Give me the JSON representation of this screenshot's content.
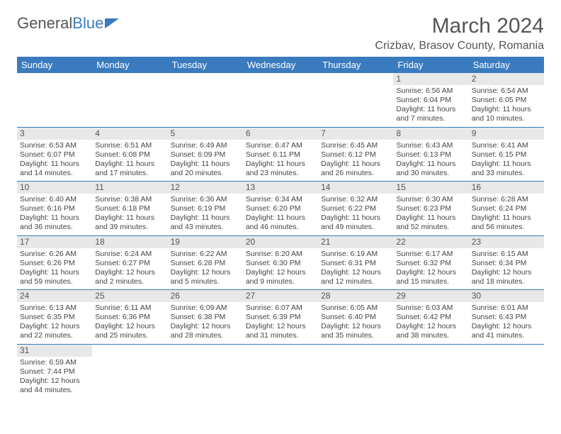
{
  "logo": {
    "text1": "General",
    "text2": "Blue"
  },
  "title": "March 2024",
  "location": "Crizbav, Brasov County, Romania",
  "colors": {
    "header_bg": "#3a7bbf",
    "header_fg": "#ffffff",
    "daynum_bg": "#e8e8e8",
    "text": "#444444",
    "rule": "#3a7bbf"
  },
  "weekdays": [
    "Sunday",
    "Monday",
    "Tuesday",
    "Wednesday",
    "Thursday",
    "Friday",
    "Saturday"
  ],
  "weeks": [
    [
      null,
      null,
      null,
      null,
      null,
      {
        "n": "1",
        "sr": "Sunrise: 6:56 AM",
        "ss": "Sunset: 6:04 PM",
        "dl": "Daylight: 11 hours and 7 minutes."
      },
      {
        "n": "2",
        "sr": "Sunrise: 6:54 AM",
        "ss": "Sunset: 6:05 PM",
        "dl": "Daylight: 11 hours and 10 minutes."
      }
    ],
    [
      {
        "n": "3",
        "sr": "Sunrise: 6:53 AM",
        "ss": "Sunset: 6:07 PM",
        "dl": "Daylight: 11 hours and 14 minutes."
      },
      {
        "n": "4",
        "sr": "Sunrise: 6:51 AM",
        "ss": "Sunset: 6:08 PM",
        "dl": "Daylight: 11 hours and 17 minutes."
      },
      {
        "n": "5",
        "sr": "Sunrise: 6:49 AM",
        "ss": "Sunset: 6:09 PM",
        "dl": "Daylight: 11 hours and 20 minutes."
      },
      {
        "n": "6",
        "sr": "Sunrise: 6:47 AM",
        "ss": "Sunset: 6:11 PM",
        "dl": "Daylight: 11 hours and 23 minutes."
      },
      {
        "n": "7",
        "sr": "Sunrise: 6:45 AM",
        "ss": "Sunset: 6:12 PM",
        "dl": "Daylight: 11 hours and 26 minutes."
      },
      {
        "n": "8",
        "sr": "Sunrise: 6:43 AM",
        "ss": "Sunset: 6:13 PM",
        "dl": "Daylight: 11 hours and 30 minutes."
      },
      {
        "n": "9",
        "sr": "Sunrise: 6:41 AM",
        "ss": "Sunset: 6:15 PM",
        "dl": "Daylight: 11 hours and 33 minutes."
      }
    ],
    [
      {
        "n": "10",
        "sr": "Sunrise: 6:40 AM",
        "ss": "Sunset: 6:16 PM",
        "dl": "Daylight: 11 hours and 36 minutes."
      },
      {
        "n": "11",
        "sr": "Sunrise: 6:38 AM",
        "ss": "Sunset: 6:18 PM",
        "dl": "Daylight: 11 hours and 39 minutes."
      },
      {
        "n": "12",
        "sr": "Sunrise: 6:36 AM",
        "ss": "Sunset: 6:19 PM",
        "dl": "Daylight: 11 hours and 43 minutes."
      },
      {
        "n": "13",
        "sr": "Sunrise: 6:34 AM",
        "ss": "Sunset: 6:20 PM",
        "dl": "Daylight: 11 hours and 46 minutes."
      },
      {
        "n": "14",
        "sr": "Sunrise: 6:32 AM",
        "ss": "Sunset: 6:22 PM",
        "dl": "Daylight: 11 hours and 49 minutes."
      },
      {
        "n": "15",
        "sr": "Sunrise: 6:30 AM",
        "ss": "Sunset: 6:23 PM",
        "dl": "Daylight: 11 hours and 52 minutes."
      },
      {
        "n": "16",
        "sr": "Sunrise: 6:28 AM",
        "ss": "Sunset: 6:24 PM",
        "dl": "Daylight: 11 hours and 56 minutes."
      }
    ],
    [
      {
        "n": "17",
        "sr": "Sunrise: 6:26 AM",
        "ss": "Sunset: 6:26 PM",
        "dl": "Daylight: 11 hours and 59 minutes."
      },
      {
        "n": "18",
        "sr": "Sunrise: 6:24 AM",
        "ss": "Sunset: 6:27 PM",
        "dl": "Daylight: 12 hours and 2 minutes."
      },
      {
        "n": "19",
        "sr": "Sunrise: 6:22 AM",
        "ss": "Sunset: 6:28 PM",
        "dl": "Daylight: 12 hours and 5 minutes."
      },
      {
        "n": "20",
        "sr": "Sunrise: 6:20 AM",
        "ss": "Sunset: 6:30 PM",
        "dl": "Daylight: 12 hours and 9 minutes."
      },
      {
        "n": "21",
        "sr": "Sunrise: 6:19 AM",
        "ss": "Sunset: 6:31 PM",
        "dl": "Daylight: 12 hours and 12 minutes."
      },
      {
        "n": "22",
        "sr": "Sunrise: 6:17 AM",
        "ss": "Sunset: 6:32 PM",
        "dl": "Daylight: 12 hours and 15 minutes."
      },
      {
        "n": "23",
        "sr": "Sunrise: 6:15 AM",
        "ss": "Sunset: 6:34 PM",
        "dl": "Daylight: 12 hours and 18 minutes."
      }
    ],
    [
      {
        "n": "24",
        "sr": "Sunrise: 6:13 AM",
        "ss": "Sunset: 6:35 PM",
        "dl": "Daylight: 12 hours and 22 minutes."
      },
      {
        "n": "25",
        "sr": "Sunrise: 6:11 AM",
        "ss": "Sunset: 6:36 PM",
        "dl": "Daylight: 12 hours and 25 minutes."
      },
      {
        "n": "26",
        "sr": "Sunrise: 6:09 AM",
        "ss": "Sunset: 6:38 PM",
        "dl": "Daylight: 12 hours and 28 minutes."
      },
      {
        "n": "27",
        "sr": "Sunrise: 6:07 AM",
        "ss": "Sunset: 6:39 PM",
        "dl": "Daylight: 12 hours and 31 minutes."
      },
      {
        "n": "28",
        "sr": "Sunrise: 6:05 AM",
        "ss": "Sunset: 6:40 PM",
        "dl": "Daylight: 12 hours and 35 minutes."
      },
      {
        "n": "29",
        "sr": "Sunrise: 6:03 AM",
        "ss": "Sunset: 6:42 PM",
        "dl": "Daylight: 12 hours and 38 minutes."
      },
      {
        "n": "30",
        "sr": "Sunrise: 6:01 AM",
        "ss": "Sunset: 6:43 PM",
        "dl": "Daylight: 12 hours and 41 minutes."
      }
    ],
    [
      {
        "n": "31",
        "sr": "Sunrise: 6:59 AM",
        "ss": "Sunset: 7:44 PM",
        "dl": "Daylight: 12 hours and 44 minutes."
      },
      null,
      null,
      null,
      null,
      null,
      null
    ]
  ]
}
